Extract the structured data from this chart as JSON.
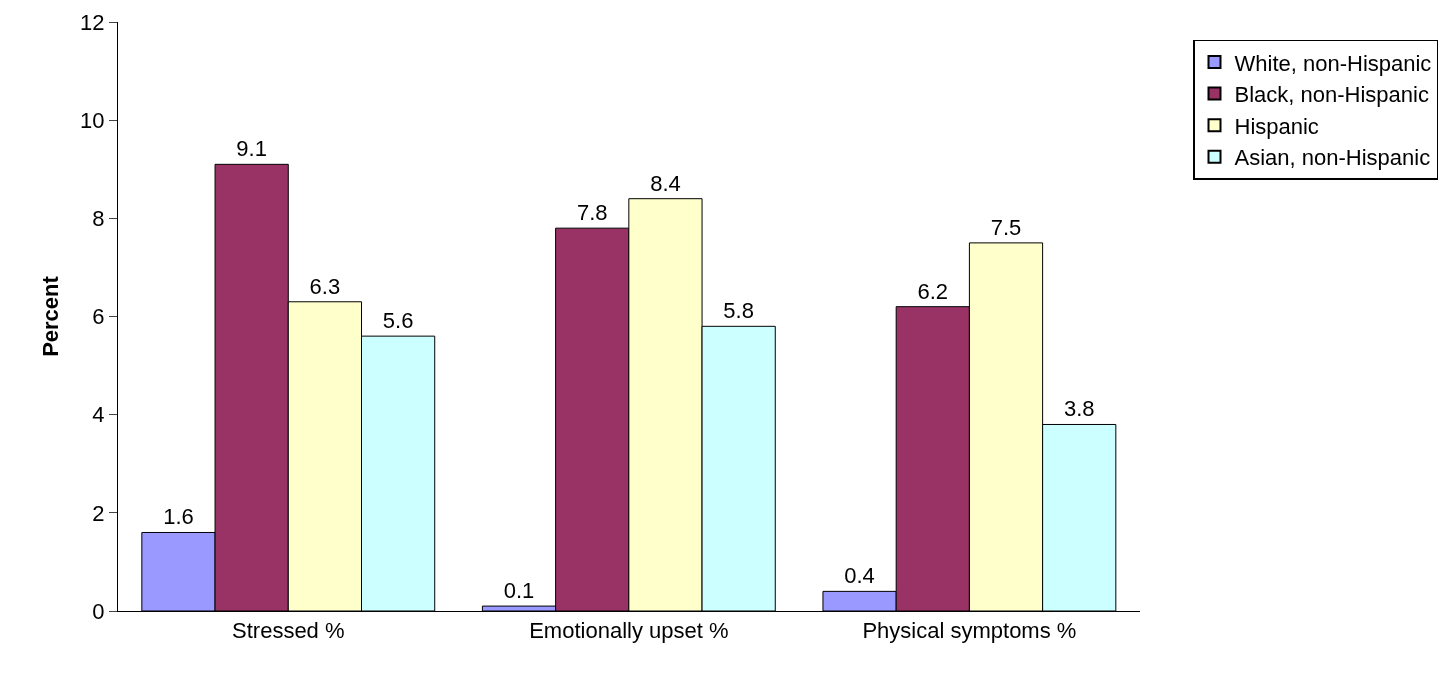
{
  "chart_data": {
    "type": "bar",
    "ylabel": "Percent",
    "categories": [
      "Stressed %",
      "Emotionally upset %",
      "Physical symptoms %"
    ],
    "series": [
      {
        "name": "White, non-Hispanic",
        "color": "#9999ff",
        "values": [
          1.6,
          0.1,
          0.4
        ]
      },
      {
        "name": "Black, non-Hispanic",
        "color": "#993366",
        "values": [
          9.1,
          7.8,
          6.2
        ]
      },
      {
        "name": "Hispanic",
        "color": "#ffffcc",
        "values": [
          6.3,
          8.4,
          7.5
        ]
      },
      {
        "name": "Asian, non-Hispanic",
        "color": "#ccffff",
        "values": [
          5.6,
          5.8,
          3.8
        ]
      }
    ],
    "ylim": [
      0,
      12
    ],
    "yticks": [
      0,
      2,
      4,
      6,
      8,
      10,
      12
    ],
    "grid": false,
    "legend": "top right",
    "data_labels": true
  }
}
